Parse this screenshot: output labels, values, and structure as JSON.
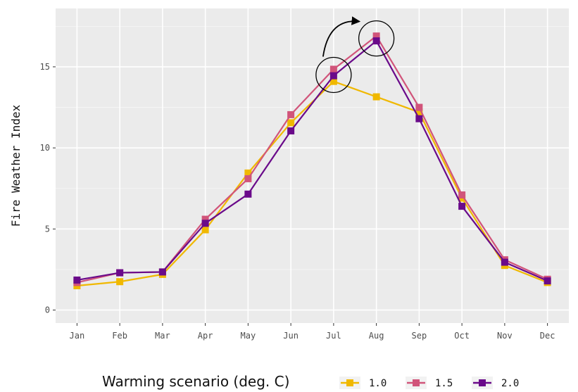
{
  "chart_data": {
    "type": "line",
    "ylabel": "Fire Weather Index",
    "xlabel": "",
    "categories": [
      "Jan",
      "Feb",
      "Mar",
      "Apr",
      "May",
      "Jun",
      "Jul",
      "Aug",
      "Sep",
      "Oct",
      "Nov",
      "Dec"
    ],
    "ylim": [
      -0.8,
      18.6
    ],
    "yticks": [
      0,
      5,
      10,
      15
    ],
    "grid": true,
    "background": "#ebebeb",
    "legend": {
      "title": "Warming scenario (deg. C)",
      "position": "bottom"
    },
    "series": [
      {
        "name": "1.0",
        "color": "#f0b800",
        "values": [
          1.5,
          1.75,
          2.2,
          4.95,
          8.45,
          11.55,
          14.1,
          13.15,
          12.2,
          6.9,
          2.75,
          1.7
        ]
      },
      {
        "name": "1.5",
        "color": "#d1547a",
        "values": [
          1.7,
          2.3,
          2.35,
          5.6,
          8.1,
          12.05,
          14.85,
          16.9,
          12.5,
          7.1,
          3.1,
          1.9
        ]
      },
      {
        "name": "2.0",
        "color": "#6a0a8a",
        "values": [
          1.85,
          2.3,
          2.35,
          5.35,
          7.15,
          11.05,
          14.45,
          16.6,
          11.8,
          6.4,
          2.95,
          1.8
        ]
      }
    ],
    "annotations": {
      "circles": [
        {
          "category": "Jul",
          "y": 14.5
        },
        {
          "category": "Aug",
          "y": 16.75
        }
      ],
      "arrow": {
        "from_category": "Jul",
        "from_y": 15.8,
        "to_category": "Aug",
        "to_y": 17.8
      }
    }
  }
}
